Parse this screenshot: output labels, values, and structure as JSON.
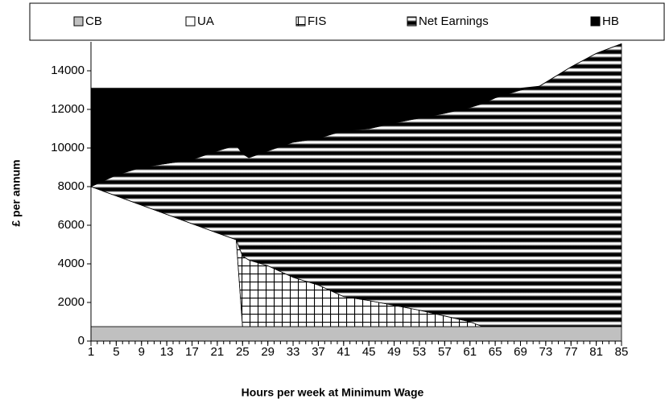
{
  "chart_data": {
    "type": "stacked_area",
    "xlabel": "Hours per week at Minimum Wage",
    "ylabel": "£ per annum",
    "x": [
      1,
      5,
      9,
      13,
      17,
      21,
      24,
      25,
      26,
      29,
      33,
      37,
      41,
      45,
      49,
      53,
      57,
      61,
      63,
      65,
      69,
      72,
      73,
      77,
      81,
      85
    ],
    "series": [
      {
        "name": "CB",
        "color": "#c0c0c0",
        "values": [
          750,
          750,
          750,
          750,
          750,
          750,
          750,
          750,
          750,
          750,
          750,
          750,
          750,
          750,
          750,
          750,
          750,
          750,
          750,
          750,
          750,
          750,
          750,
          750,
          750,
          750
        ]
      },
      {
        "name": "UA",
        "color": "#ffffff",
        "values": [
          7250,
          6770,
          6290,
          5810,
          5330,
          4850,
          4500,
          0,
          0,
          0,
          0,
          0,
          0,
          0,
          0,
          0,
          0,
          0,
          0,
          0,
          0,
          0,
          0,
          0,
          0,
          0
        ]
      },
      {
        "name": "FIS",
        "color": "#ffffff",
        "pattern": "grid",
        "values": [
          0,
          0,
          0,
          0,
          0,
          0,
          0,
          3650,
          3450,
          3150,
          2550,
          2150,
          1550,
          1350,
          1100,
          850,
          550,
          250,
          0,
          0,
          0,
          0,
          0,
          0,
          0,
          0
        ]
      },
      {
        "name": "Net Earnings",
        "color": "#000000",
        "pattern": "hstripes",
        "values": [
          0,
          1080,
          1960,
          2640,
          3320,
          4250,
          4900,
          5300,
          5300,
          5950,
          7000,
          7600,
          8600,
          8900,
          9450,
          9950,
          10500,
          11100,
          11550,
          11850,
          12250,
          12450,
          12650,
          13450,
          14150,
          14650
        ]
      },
      {
        "name": "HB",
        "color": "#000000",
        "values": [
          5100,
          4500,
          4100,
          3900,
          3700,
          3250,
          2950,
          3400,
          3600,
          3250,
          2800,
          2600,
          2200,
          2100,
          1800,
          1550,
          1300,
          1000,
          800,
          500,
          100,
          0,
          0,
          0,
          0,
          0
        ]
      }
    ],
    "xlim": [
      1,
      85
    ],
    "xticks": [
      1,
      5,
      9,
      13,
      17,
      21,
      25,
      29,
      33,
      37,
      41,
      45,
      49,
      53,
      57,
      61,
      65,
      69,
      73,
      77,
      81,
      85
    ],
    "ylim": [
      0,
      15500
    ],
    "yticks": [
      0,
      2000,
      4000,
      6000,
      8000,
      10000,
      12000,
      14000
    ],
    "legend": "top"
  }
}
